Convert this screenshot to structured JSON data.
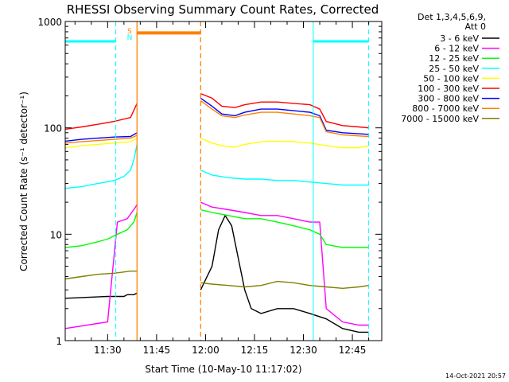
{
  "chart_data": {
    "type": "line",
    "title": "RHESSI Observing Summary Count Rates, Corrected",
    "xlabel": "Start Time (10-May-10 11:17:02)",
    "ylabel": "Corrected Count Rate (s⁻¹ detector⁻¹)",
    "yscale": "log",
    "ylim": [
      1,
      1000
    ],
    "xlim_minutes": [
      0,
      97
    ],
    "x_tick_labels": [
      "11:30",
      "11:45",
      "12:00",
      "12:15",
      "12:30",
      "12:45"
    ],
    "x_tick_minutes": [
      13,
      28,
      43,
      58,
      73,
      88
    ],
    "y_tick_labels": [
      "1",
      "10",
      "100",
      "1000"
    ],
    "y_tick_values": [
      1,
      10,
      100,
      1000
    ],
    "legend_header": [
      "Det 1,3,4,5,6,9,",
      "Att 0"
    ],
    "legend_position": "right",
    "footer_timestamp": "14-Oct-2021 20:57",
    "flag_markers": [
      "S",
      "N"
    ],
    "gaps_minutes": [
      [
        22,
        41.5
      ]
    ],
    "series": [
      {
        "name": "3 - 6 keV",
        "color": "#000000",
        "x": [
          0,
          13,
          18,
          19,
          20,
          21,
          22,
          41.5,
          45,
          47,
          49,
          51,
          53,
          55,
          57,
          60,
          65,
          70,
          75,
          80,
          85,
          90,
          93
        ],
        "y": [
          2.5,
          2.6,
          2.6,
          2.7,
          2.7,
          2.7,
          2.8,
          3,
          5,
          11,
          15,
          12,
          6,
          3,
          2,
          1.8,
          2,
          2,
          1.8,
          1.6,
          1.3,
          1.2,
          1.2
        ]
      },
      {
        "name": "6 - 12 keV",
        "color": "#ff00ff",
        "x": [
          0,
          13,
          16,
          19,
          21,
          22,
          41.5,
          45,
          50,
          55,
          60,
          65,
          70,
          75,
          78,
          80,
          85,
          90,
          93
        ],
        "y": [
          1.3,
          1.5,
          13,
          14,
          17,
          19,
          20,
          18,
          17,
          16,
          15,
          15,
          14,
          13,
          13,
          2,
          1.5,
          1.4,
          1.4
        ]
      },
      {
        "name": "12 - 25 keV",
        "color": "#00ff00",
        "x": [
          0,
          5,
          10,
          13,
          16,
          19,
          21,
          22,
          41.5,
          45,
          50,
          55,
          60,
          65,
          70,
          75,
          78,
          80,
          85,
          90,
          93
        ],
        "y": [
          7.5,
          7.8,
          8.5,
          9,
          10,
          11,
          13,
          16,
          17,
          16,
          15,
          14,
          14,
          13,
          12,
          11,
          10,
          8,
          7.5,
          7.5,
          7.5
        ]
      },
      {
        "name": "25 - 50 keV",
        "color": "#00ffff",
        "x": [
          0,
          5,
          10,
          15,
          18,
          20,
          21,
          22,
          41.5,
          45,
          50,
          55,
          60,
          65,
          70,
          75,
          80,
          85,
          90,
          93
        ],
        "y": [
          27,
          28,
          30,
          32,
          35,
          40,
          50,
          70,
          40,
          36,
          34,
          33,
          33,
          32,
          32,
          31,
          30,
          29,
          29,
          29
        ]
      },
      {
        "name": "50 - 100 keV",
        "color": "#ffff00",
        "x": [
          0,
          5,
          10,
          15,
          20,
          22,
          41.5,
          45,
          48,
          52,
          55,
          60,
          65,
          70,
          75,
          80,
          85,
          90,
          93
        ],
        "y": [
          65,
          68,
          70,
          72,
          74,
          80,
          80,
          72,
          68,
          66,
          70,
          74,
          75,
          74,
          72,
          68,
          65,
          65,
          68
        ]
      },
      {
        "name": "100 - 300 keV",
        "color": "#ff0000",
        "x": [
          0,
          5,
          10,
          15,
          20,
          22,
          41.5,
          45,
          48,
          52,
          55,
          60,
          65,
          70,
          75,
          78,
          80,
          85,
          90,
          93
        ],
        "y": [
          97,
          102,
          108,
          115,
          125,
          170,
          210,
          190,
          160,
          155,
          165,
          175,
          175,
          170,
          165,
          150,
          115,
          105,
          102,
          100
        ]
      },
      {
        "name": "300 - 800 keV",
        "color": "#0000ff",
        "x": [
          0,
          5,
          10,
          15,
          20,
          22,
          41.5,
          45,
          48,
          52,
          55,
          60,
          65,
          70,
          75,
          78,
          80,
          85,
          90,
          93
        ],
        "y": [
          75,
          78,
          80,
          82,
          83,
          90,
          190,
          160,
          135,
          130,
          140,
          150,
          150,
          145,
          140,
          130,
          95,
          90,
          88,
          87
        ]
      },
      {
        "name": "800 - 7000 keV",
        "color": "#ff8000",
        "x": [
          0,
          5,
          10,
          15,
          20,
          22,
          41.5,
          45,
          48,
          52,
          55,
          60,
          65,
          70,
          75,
          78,
          80,
          85,
          90,
          93
        ],
        "y": [
          72,
          74,
          76,
          78,
          80,
          85,
          180,
          150,
          130,
          125,
          132,
          140,
          140,
          135,
          130,
          125,
          92,
          86,
          84,
          83
        ]
      },
      {
        "name": "7000 - 15000 keV",
        "color": "#808000",
        "x": [
          0,
          5,
          10,
          15,
          20,
          22,
          41.5,
          45,
          50,
          55,
          60,
          65,
          70,
          75,
          80,
          85,
          90,
          93
        ],
        "y": [
          3.8,
          4,
          4.2,
          4.3,
          4.5,
          4.5,
          3.5,
          3.4,
          3.3,
          3.2,
          3.3,
          3.6,
          3.5,
          3.3,
          3.2,
          3.1,
          3.2,
          3.3
        ]
      }
    ],
    "annotations": {
      "cyan_bars": [
        [
          0,
          15.5
        ],
        [
          76,
          93
        ]
      ],
      "cyan_bar_value": 650,
      "orange_bar": [
        22,
        41.5
      ],
      "orange_bar_value": 780,
      "cyan_dashed_x": [
        15.5,
        93
      ],
      "cyan_solid_x": [
        76
      ],
      "orange_solid_x": [
        22
      ],
      "orange_dashed_x": [
        41.5
      ]
    }
  }
}
